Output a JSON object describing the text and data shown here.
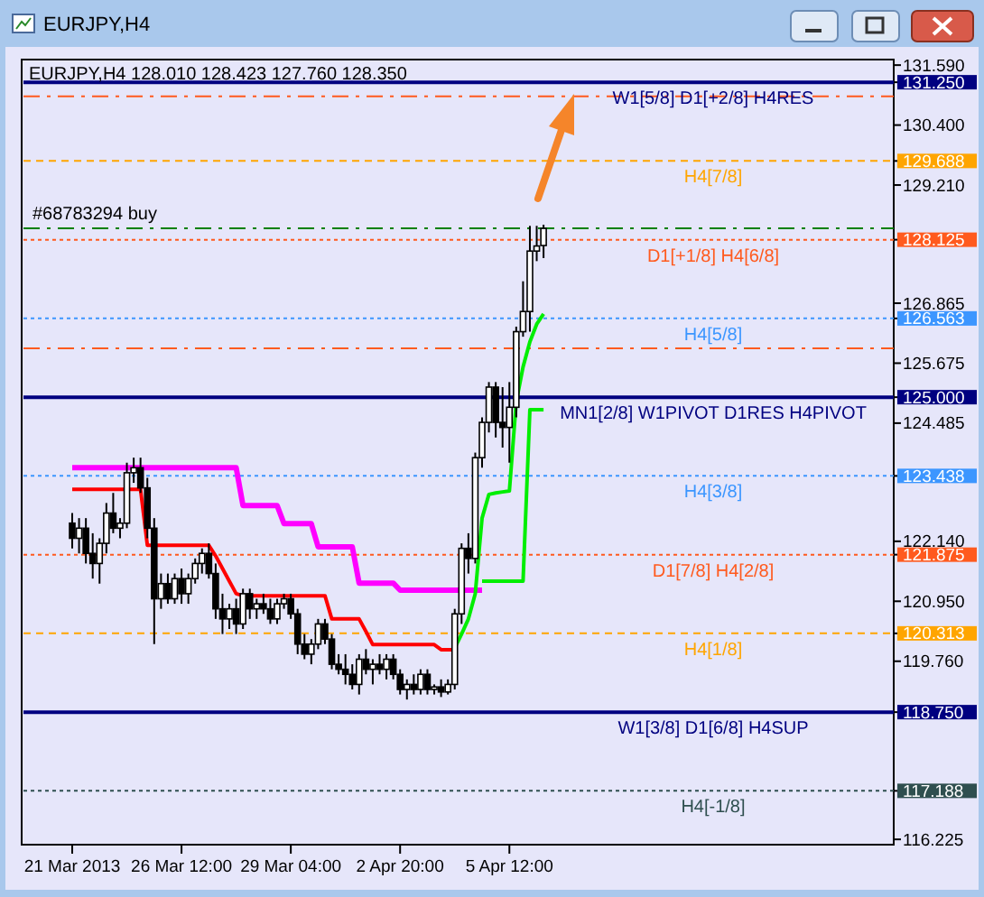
{
  "chart_data": {
    "type": "candlestick",
    "title": "EURJPY,H4",
    "subtitle": "EURJPY,H4  128.010 128.423 127.760 128.350",
    "categories": [
      "21 Mar 2013",
      null,
      null,
      null,
      null,
      null,
      null,
      null,
      null,
      null,
      null,
      null,
      null,
      null,
      null,
      null,
      "26 Mar 12:00",
      null,
      null,
      null,
      null,
      null,
      null,
      null,
      null,
      null,
      null,
      null,
      null,
      null,
      null,
      null,
      "29 Mar 04:00",
      null,
      null,
      null,
      null,
      null,
      null,
      null,
      null,
      null,
      null,
      null,
      null,
      null,
      null,
      null,
      "2 Apr 20:00",
      null,
      null,
      null,
      null,
      null,
      null,
      null,
      null,
      null,
      null,
      null,
      null,
      null,
      null,
      null,
      "5 Apr 12:00",
      null,
      null,
      null,
      null,
      null,
      null,
      null,
      null,
      null,
      null,
      null,
      null,
      null,
      null,
      null,
      null,
      null,
      null,
      null,
      null,
      null,
      null,
      null,
      null,
      null,
      null,
      null,
      null,
      null,
      null,
      null,
      null,
      null,
      null,
      null,
      null,
      null,
      null,
      null,
      null,
      null,
      null,
      null,
      null,
      null,
      null,
      null,
      null,
      null,
      null,
      null,
      null,
      null,
      null,
      null,
      null
    ],
    "ohlc": [
      [
        122.5,
        122.7,
        122.0,
        122.2
      ],
      [
        122.2,
        122.6,
        121.9,
        122.4
      ],
      [
        122.4,
        122.6,
        121.7,
        121.9
      ],
      [
        121.9,
        122.3,
        121.4,
        121.7
      ],
      [
        121.7,
        122.2,
        121.3,
        122.1
      ],
      [
        122.1,
        122.9,
        121.9,
        122.7
      ],
      [
        122.7,
        123.1,
        122.3,
        122.4
      ],
      [
        122.4,
        122.6,
        122.2,
        122.5
      ],
      [
        122.5,
        123.7,
        122.4,
        123.5
      ],
      [
        123.5,
        123.8,
        123.3,
        123.6
      ],
      [
        123.6,
        123.8,
        123.1,
        123.2
      ],
      [
        123.2,
        123.4,
        122.2,
        122.4
      ],
      [
        122.4,
        122.6,
        120.1,
        121.0
      ],
      [
        121.0,
        121.5,
        120.8,
        121.3
      ],
      [
        121.3,
        121.5,
        120.9,
        121.0
      ],
      [
        121.0,
        121.5,
        120.9,
        121.4
      ],
      [
        121.4,
        121.6,
        120.9,
        121.1
      ],
      [
        121.1,
        121.5,
        120.9,
        121.4
      ],
      [
        121.4,
        121.8,
        121.3,
        121.7
      ],
      [
        121.7,
        122.0,
        121.5,
        121.9
      ],
      [
        121.9,
        122.1,
        121.4,
        121.5
      ],
      [
        121.5,
        121.7,
        120.6,
        120.8
      ],
      [
        120.8,
        121.1,
        120.3,
        120.6
      ],
      [
        120.6,
        120.9,
        120.4,
        120.8
      ],
      [
        120.8,
        121.0,
        120.3,
        120.5
      ],
      [
        120.5,
        121.2,
        120.4,
        121.1
      ],
      [
        121.1,
        121.2,
        120.6,
        120.8
      ],
      [
        120.8,
        121.0,
        120.6,
        120.9
      ],
      [
        120.9,
        121.1,
        120.7,
        120.8
      ],
      [
        120.8,
        121.0,
        120.5,
        120.6
      ],
      [
        120.6,
        121.0,
        120.5,
        120.9
      ],
      [
        120.9,
        121.1,
        120.8,
        121.0
      ],
      [
        121.0,
        121.1,
        120.6,
        120.7
      ],
      [
        120.7,
        120.8,
        119.9,
        120.1
      ],
      [
        120.1,
        120.3,
        119.8,
        119.9
      ],
      [
        119.9,
        120.2,
        119.7,
        120.1
      ],
      [
        120.1,
        120.6,
        120.0,
        120.5
      ],
      [
        120.5,
        120.6,
        120.1,
        120.2
      ],
      [
        120.2,
        120.3,
        119.6,
        119.7
      ],
      [
        119.7,
        119.9,
        119.5,
        119.6
      ],
      [
        119.6,
        119.9,
        119.3,
        119.5
      ],
      [
        119.5,
        119.7,
        119.2,
        119.3
      ],
      [
        119.3,
        119.9,
        119.1,
        119.8
      ],
      [
        119.8,
        120.0,
        119.5,
        119.6
      ],
      [
        119.6,
        119.8,
        119.3,
        119.7
      ],
      [
        119.7,
        119.9,
        119.5,
        119.6
      ],
      [
        119.6,
        119.9,
        119.4,
        119.8
      ],
      [
        119.8,
        119.9,
        119.4,
        119.5
      ],
      [
        119.5,
        119.6,
        119.1,
        119.2
      ],
      [
        119.2,
        119.4,
        119.0,
        119.3
      ],
      [
        119.3,
        119.5,
        119.1,
        119.2
      ],
      [
        119.2,
        119.6,
        119.1,
        119.5
      ],
      [
        119.5,
        119.6,
        119.1,
        119.2
      ],
      [
        119.2,
        119.3,
        119.1,
        119.25
      ],
      [
        119.25,
        119.4,
        119.05,
        119.15
      ],
      [
        119.15,
        119.4,
        119.1,
        119.3
      ],
      [
        119.3,
        120.8,
        119.2,
        120.7
      ],
      [
        120.7,
        122.1,
        120.5,
        122.0
      ],
      [
        122.0,
        122.3,
        121.5,
        121.8
      ],
      [
        121.8,
        123.9,
        121.7,
        123.8
      ],
      [
        123.8,
        124.6,
        123.6,
        124.5
      ],
      [
        124.5,
        125.3,
        124.3,
        125.2
      ],
      [
        125.2,
        125.3,
        124.2,
        124.5
      ],
      [
        124.5,
        125.2,
        124.0,
        124.4
      ],
      [
        124.4,
        125.3,
        123.7,
        124.8
      ],
      [
        124.8,
        126.4,
        124.6,
        126.3
      ],
      [
        126.3,
        127.3,
        126.2,
        126.7
      ],
      [
        126.7,
        128.4,
        126.3,
        127.9
      ],
      [
        127.9,
        128.4,
        127.7,
        128.0
      ],
      [
        128.01,
        128.423,
        127.76,
        128.35
      ],
      null,
      null,
      null,
      null,
      null,
      null,
      null,
      null,
      null,
      null,
      null,
      null,
      null,
      null,
      null,
      null,
      null,
      null,
      null,
      null,
      null,
      null,
      null,
      null,
      null,
      null,
      null,
      null,
      null,
      null,
      null,
      null,
      null,
      null,
      null,
      null,
      null,
      null,
      null,
      null,
      null,
      null,
      null,
      null,
      null,
      null,
      null,
      null,
      null,
      null,
      null
    ],
    "series": [
      {
        "type": "line",
        "color": "#ff0000",
        "values": [
          123.17,
          123.17,
          123.17,
          123.17,
          123.17,
          123.17,
          123.17,
          123.17,
          123.17,
          123.17,
          123.17,
          122.06,
          122.06,
          122.06,
          122.06,
          122.06,
          122.06,
          122.06,
          122.06,
          122.06,
          122.06,
          121.85,
          121.6,
          121.35,
          121.1,
          121.06,
          121.06,
          121.06,
          121.06,
          121.06,
          121.06,
          121.06,
          121.06,
          121.06,
          121.06,
          121.06,
          121.06,
          121.06,
          120.6,
          120.6,
          120.6,
          120.6,
          120.6,
          120.35,
          120.09,
          120.09,
          120.09,
          120.09,
          120.09,
          120.09,
          120.09,
          120.09,
          120.09,
          120.09,
          119.99,
          119.99,
          119.99,
          null,
          null,
          null,
          null,
          null,
          null,
          null,
          null,
          null,
          null,
          null,
          null,
          null,
          null,
          null,
          null,
          null,
          null,
          null,
          null,
          null,
          null,
          null,
          null,
          null,
          null,
          null,
          null,
          null,
          null,
          null,
          null,
          null,
          null,
          null,
          null,
          null,
          null,
          null,
          null,
          null,
          null,
          null,
          null,
          null,
          null,
          null,
          null,
          null,
          null,
          null,
          null,
          null,
          null,
          null,
          null,
          null,
          null,
          null,
          null,
          null,
          null,
          null,
          null
        ]
      },
      {
        "type": "line",
        "color": "#ff00ff",
        "values": [
          123.6,
          123.6,
          123.6,
          123.6,
          123.6,
          123.6,
          123.6,
          123.6,
          123.6,
          123.6,
          123.6,
          123.6,
          123.6,
          123.6,
          123.6,
          123.6,
          123.6,
          123.6,
          123.6,
          123.6,
          123.6,
          123.6,
          123.6,
          123.6,
          123.6,
          122.85,
          122.85,
          122.85,
          122.85,
          122.85,
          122.85,
          122.49,
          122.49,
          122.49,
          122.49,
          122.49,
          122.03,
          122.03,
          122.03,
          122.03,
          122.03,
          122.03,
          121.31,
          121.31,
          121.31,
          121.31,
          121.31,
          121.31,
          121.17,
          121.17,
          121.17,
          121.17,
          121.17,
          121.17,
          121.17,
          121.17,
          121.17,
          121.17,
          121.17,
          121.17,
          121.17,
          null,
          null,
          null,
          null,
          null,
          null,
          null,
          null,
          null,
          null,
          null,
          null,
          null,
          null,
          null,
          null,
          null,
          null,
          null,
          null,
          null,
          null,
          null,
          null,
          null,
          null,
          null,
          null,
          null,
          null,
          null,
          null,
          null,
          null,
          null,
          null,
          null,
          null,
          null,
          null,
          null,
          null,
          null,
          null,
          null,
          null,
          null,
          null,
          null,
          null,
          null,
          null,
          null,
          null,
          null,
          null,
          null,
          null,
          null,
          null
        ]
      },
      {
        "type": "line",
        "color": "#00ee00",
        "values": [
          null,
          null,
          null,
          null,
          null,
          null,
          null,
          null,
          null,
          null,
          null,
          null,
          null,
          null,
          null,
          null,
          null,
          null,
          null,
          null,
          null,
          null,
          null,
          null,
          null,
          null,
          null,
          null,
          null,
          null,
          null,
          null,
          null,
          null,
          null,
          null,
          null,
          null,
          null,
          null,
          null,
          null,
          null,
          null,
          null,
          null,
          null,
          null,
          null,
          null,
          null,
          null,
          null,
          null,
          null,
          null,
          120.02,
          120.3,
          120.6,
          121.1,
          122.6,
          123.07,
          123.1,
          123.12,
          123.14,
          124.9,
          125.6,
          126.1,
          126.45,
          126.65,
          null,
          null,
          null,
          null,
          null,
          null,
          null,
          null,
          null,
          null,
          null,
          null,
          null,
          null,
          null,
          null,
          null,
          null,
          null,
          null,
          null,
          null,
          null,
          null,
          null,
          null,
          null,
          null,
          null,
          null,
          null,
          null,
          null,
          null,
          null,
          null,
          null,
          null,
          null,
          null,
          null,
          null,
          null,
          null,
          null,
          null,
          null,
          null,
          null,
          null,
          null
        ]
      },
      {
        "type": "line",
        "color": "#00ee00",
        "values": [
          null,
          null,
          null,
          null,
          null,
          null,
          null,
          null,
          null,
          null,
          null,
          null,
          null,
          null,
          null,
          null,
          null,
          null,
          null,
          null,
          null,
          null,
          null,
          null,
          null,
          null,
          null,
          null,
          null,
          null,
          null,
          null,
          null,
          null,
          null,
          null,
          null,
          null,
          null,
          null,
          null,
          null,
          null,
          null,
          null,
          null,
          null,
          null,
          null,
          null,
          null,
          null,
          null,
          null,
          null,
          null,
          null,
          null,
          null,
          null,
          121.35,
          121.35,
          121.35,
          121.35,
          121.35,
          121.35,
          121.35,
          124.75,
          124.75,
          124.75,
          null,
          null,
          null,
          null,
          null,
          null,
          null,
          null,
          null,
          null,
          null,
          null,
          null,
          null,
          null,
          null,
          null,
          null,
          null,
          null,
          null,
          null,
          null,
          null,
          null,
          null,
          null,
          null,
          null,
          null,
          null,
          null,
          null,
          null,
          null,
          null,
          null,
          null,
          null,
          null,
          null,
          null,
          null,
          null,
          null,
          null,
          null,
          null,
          null,
          null,
          null
        ]
      }
    ],
    "ylim": [
      116.12,
      131.7
    ],
    "yticks": [
      116.225,
      {
        "value": 117.188,
        "label": "117.188"
      },
      {
        "value": 118.75,
        "label": "118.750"
      },
      {
        "value": 119.76,
        "label": "119.760"
      },
      {
        "value": 120.313,
        "label": "120.313"
      },
      {
        "value": 120.95,
        "label": "120.950"
      },
      {
        "value": 121.875,
        "label": "121.875"
      },
      {
        "value": 122.14,
        "label": "122.140"
      },
      {
        "value": 123.438,
        "label": "123.438"
      },
      124.485,
      {
        "value": 125.0,
        "label": "125.000"
      },
      125.675,
      {
        "value": 126.563,
        "label": "126.563"
      },
      126.865,
      {
        "value": 128.125,
        "label": "128.125"
      },
      {
        "value": 129.21,
        "label": "129.210"
      },
      {
        "value": 129.688,
        "label": "129.688"
      },
      {
        "value": 130.4,
        "label": "130.400"
      },
      {
        "value": 131.25,
        "label": "131.250"
      },
      {
        "value": 131.59,
        "label": "131.590"
      }
    ],
    "ref_lines": [
      {
        "axis": "y",
        "value": 131.25,
        "label": "W1[5/8] D1[+2/8] H4RES",
        "color": "#000080",
        "line_style": "solid"
      },
      {
        "axis": "y",
        "value": 130.97,
        "color": "#ff5a1e",
        "line_style": "dashdot"
      },
      {
        "axis": "y",
        "value": 129.688,
        "label": "H4[7/8]",
        "color": "#ffa500",
        "line_style": "dashed"
      },
      {
        "axis": "y",
        "value": 128.35,
        "label": "#68783294 buy",
        "color": "#008000",
        "line_style": "dashdot"
      },
      {
        "axis": "y",
        "value": 128.125,
        "label": "D1[+1/8] H4[6/8]",
        "color": "#ff5a1e",
        "line_style": "dotted"
      },
      {
        "axis": "y",
        "value": 126.563,
        "label": "H4[5/8]",
        "color": "#3c96ff",
        "line_style": "dotted"
      },
      {
        "axis": "y",
        "value": 125.97,
        "color": "#ff5a1e",
        "line_style": "dashdot"
      },
      {
        "axis": "y",
        "value": 125.0,
        "label": "MN1[2/8] W1PIVOT D1RES H4PIVOT",
        "color": "#000080",
        "line_style": "solid"
      },
      {
        "axis": "y",
        "value": 123.438,
        "label": "H4[3/8]",
        "color": "#3c96ff",
        "line_style": "dotted"
      },
      {
        "axis": "y",
        "value": 121.875,
        "label": "D1[7/8] H4[2/8]",
        "color": "#ff5a1e",
        "line_style": "dotted"
      },
      {
        "axis": "y",
        "value": 120.313,
        "label": "H4[1/8]",
        "color": "#ffa500",
        "line_style": "dashed"
      },
      {
        "axis": "y",
        "value": 118.75,
        "label": "W1[3/8] D1[6/8] H4SUP",
        "color": "#000080",
        "line_style": "solid"
      },
      {
        "axis": "y",
        "value": 117.188,
        "label": "H4[-1/8]",
        "color": "#2f4f4f",
        "line_style": "dotted"
      }
    ]
  }
}
